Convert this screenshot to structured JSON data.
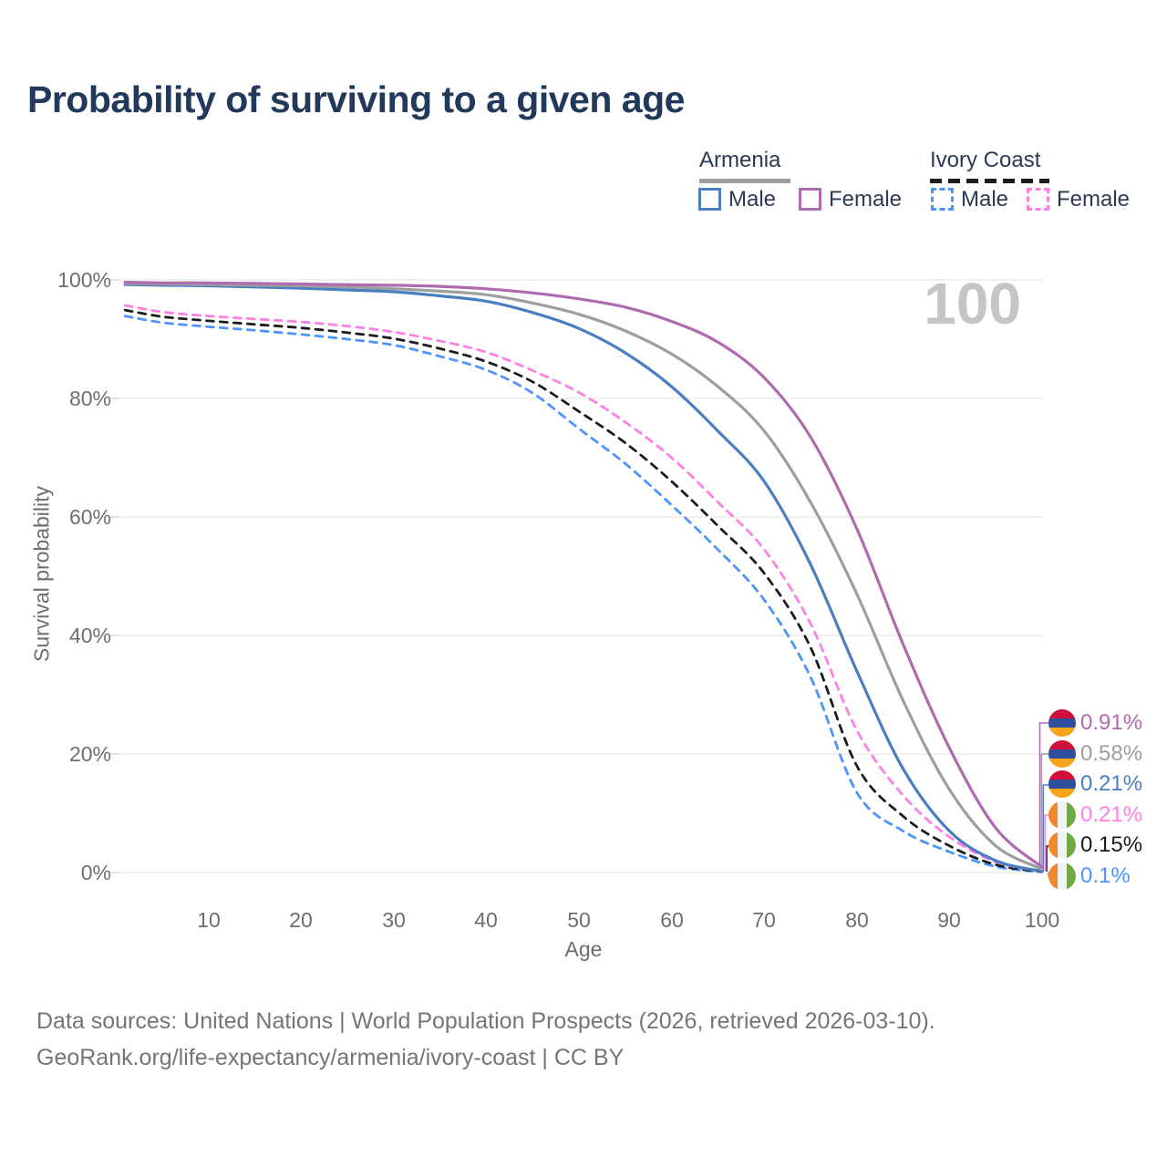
{
  "title": "Probability of surviving to a given age",
  "legend": {
    "armenia": {
      "label": "Armenia",
      "male": "Male",
      "female": "Female"
    },
    "ivory_coast": {
      "label": "Ivory Coast",
      "male": "Male",
      "female": "Female"
    }
  },
  "age_marker": "100",
  "chart_data": {
    "type": "line",
    "title": "Probability of surviving to a given age",
    "xlabel": "Age",
    "ylabel": "Survival probability",
    "xlim": [
      0,
      100
    ],
    "ylim": [
      0,
      100
    ],
    "grid": "horizontal",
    "legend_position": "top-right",
    "x_ticks": [
      10,
      20,
      30,
      40,
      50,
      60,
      70,
      80,
      90,
      100
    ],
    "x_tick_labels": [
      "10",
      "20",
      "30",
      "40",
      "50",
      "60",
      "70",
      "80",
      "90",
      "100"
    ],
    "y_ticks": [
      0,
      20,
      40,
      60,
      80,
      100
    ],
    "y_tick_labels": [
      "0%",
      "20%",
      "40%",
      "60%",
      "80%",
      "100%"
    ],
    "ages": [
      1,
      5,
      10,
      15,
      20,
      25,
      30,
      35,
      40,
      45,
      50,
      55,
      60,
      65,
      70,
      75,
      80,
      85,
      90,
      95,
      100
    ],
    "series": [
      {
        "name": "Armenia Female",
        "country": "Armenia",
        "sex": "Female",
        "line": "solid",
        "color_key": "armenia_female",
        "flag": "armenia",
        "end_label": "0.91%",
        "values": [
          99.6,
          99.5,
          99.5,
          99.4,
          99.3,
          99.2,
          99.1,
          98.9,
          98.5,
          97.8,
          96.8,
          95.4,
          93,
          89.5,
          83.5,
          73.5,
          58,
          38.5,
          21,
          7.5,
          0.91
        ]
      },
      {
        "name": "Armenia Both sexes",
        "country": "Armenia",
        "sex": "Both",
        "line": "solid",
        "color_key": "armenia_both",
        "flag": "armenia",
        "end_label": "0.58%",
        "values": [
          99.4,
          99.3,
          99.2,
          99.1,
          99.0,
          98.8,
          98.5,
          98.1,
          97.5,
          96.1,
          94.2,
          91.4,
          87.5,
          82,
          74.5,
          62.5,
          47,
          29,
          14,
          4.5,
          0.58
        ]
      },
      {
        "name": "Armenia Male",
        "country": "Armenia",
        "sex": "Male",
        "line": "solid",
        "color_key": "armenia_male",
        "flag": "armenia",
        "end_label": "0.21%",
        "values": [
          99.2,
          99.1,
          99.0,
          98.8,
          98.6,
          98.3,
          98.0,
          97.3,
          96.4,
          94.5,
          91.8,
          87.7,
          82,
          74.5,
          66,
          52,
          34,
          17.5,
          7,
          2,
          0.21
        ]
      },
      {
        "name": "Ivory Coast Female",
        "country": "Ivory Coast",
        "sex": "Female",
        "line": "dashed",
        "color_key": "ivory_female",
        "flag": "ivory_coast",
        "end_label": "0.21%",
        "values": [
          95.7,
          94.6,
          93.9,
          93.4,
          92.9,
          92.2,
          91.2,
          89.7,
          87.8,
          84.7,
          81,
          76,
          70,
          62.5,
          54.5,
          42,
          24,
          13,
          6,
          1.8,
          0.21
        ]
      },
      {
        "name": "Ivory Coast Both sexes",
        "country": "Ivory Coast",
        "sex": "Both",
        "line": "dashed",
        "color_key": "ivory_both",
        "flag": "ivory_coast",
        "end_label": "0.15%",
        "values": [
          94.9,
          93.8,
          93.1,
          92.5,
          91.9,
          91.1,
          90.1,
          88.4,
          86.2,
          82.8,
          77.8,
          72.5,
          66,
          58.5,
          50.5,
          38,
          18,
          9.5,
          4.5,
          1.3,
          0.15
        ]
      },
      {
        "name": "Ivory Coast Male",
        "country": "Ivory Coast",
        "sex": "Male",
        "line": "dashed",
        "color_key": "ivory_male",
        "flag": "ivory_coast",
        "end_label": "0.1%",
        "values": [
          93.9,
          92.8,
          92.1,
          91.5,
          90.8,
          90.0,
          89.0,
          87.1,
          84.8,
          80.9,
          74.9,
          69,
          62,
          54.5,
          46,
          33,
          13.5,
          7,
          3.5,
          1,
          0.1
        ]
      }
    ]
  },
  "footer": {
    "line1": "Data sources: United Nations | World Population Prospects (2026, retrieved 2026-03-10).",
    "line2": "GeoRank.org/life-expectancy/armenia/ivory-coast | CC BY"
  },
  "colors": {
    "title": "#23395b",
    "legend_text": "#2b3a55",
    "axis_text": "#6e6e6e",
    "grid": "#e8e8e8",
    "tick_stub": "#d9d9d9",
    "big_marker": "#c5c5c5",
    "footer": "#757575",
    "armenia_female": "#b06ab0",
    "armenia_both": "#9e9e9e",
    "armenia_male": "#4a7ec2",
    "ivory_female": "#ff80e5",
    "ivory_both": "#1c1c1c",
    "ivory_male": "#4d94ff",
    "flag_am_red": "#d0103a",
    "flag_am_blue": "#2d4f9e",
    "flag_am_orange": "#f7a31b",
    "flag_ci_orange": "#f1882b",
    "flag_ci_white": "#f2f2f2",
    "flag_ci_green": "#6faa47"
  }
}
